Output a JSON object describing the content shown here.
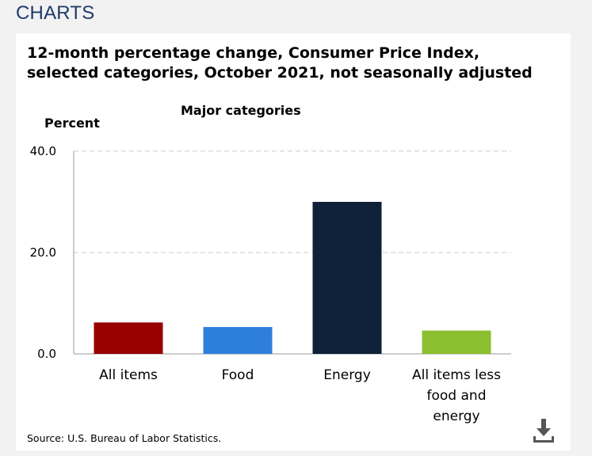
{
  "page": {
    "section_title": "CHARTS",
    "source": "Source: U.S. Bureau of Labor Statistics."
  },
  "icons": {
    "download": "download-icon"
  },
  "chart_data": {
    "type": "bar",
    "title_line1": "12-month percentage change, Consumer Price Index,",
    "title_line2": "selected categories, October 2021, not seasonally adjusted",
    "subtitle": "Major categories",
    "ylabel": "Percent",
    "xlabel": "",
    "ylim": [
      0,
      40
    ],
    "yticks": [
      "0.0",
      "20.0",
      "40.0"
    ],
    "ytick_values": [
      0,
      20,
      40
    ],
    "grid": true,
    "categories": [
      [
        "All items"
      ],
      [
        "Food"
      ],
      [
        "Energy"
      ],
      [
        "All items less",
        "food and",
        "energy"
      ]
    ],
    "values": [
      6.2,
      5.3,
      30.0,
      4.6
    ],
    "colors": [
      "#990000",
      "#2e7fdc",
      "#0f2138",
      "#8cbf2f"
    ]
  }
}
